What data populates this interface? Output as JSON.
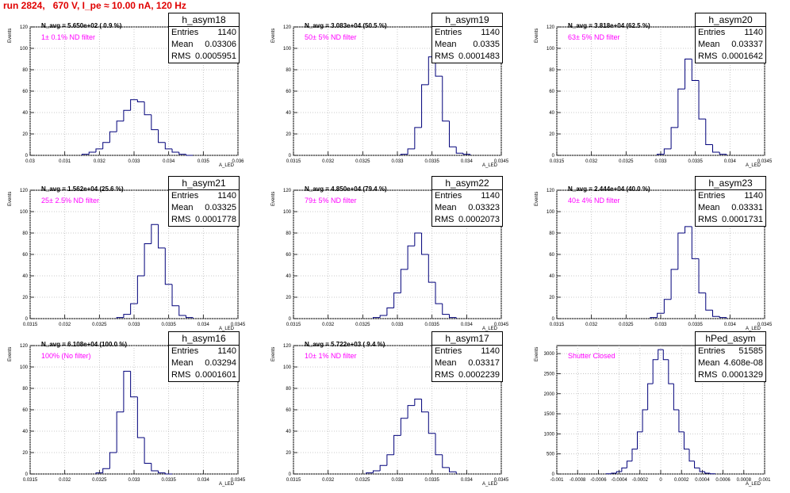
{
  "header": {
    "run_title": "run 2824,   670 V, I_pe ≈ 10.00 nA, 120 Hz"
  },
  "colors": {
    "title": "#e00000",
    "histogram": "#00007a",
    "filter_label": "#ff00ff",
    "grid": "#bbbbbb"
  },
  "stat_labels": {
    "entries": "Entries",
    "mean": "Mean",
    "rms": "RMS"
  },
  "chart_data": [
    {
      "type": "histogram",
      "name": "h_asym18",
      "n_avg": "N_avg = 5.650e+02 ( 0.9 %)",
      "filter": "1± 0.1% ND filter",
      "entries": "1140",
      "mean": "0.03306",
      "rms": "0.0005951",
      "ylabel": "Events",
      "xlabel": "A_LED",
      "xlim": [
        0.03,
        0.036
      ],
      "ylim": [
        0,
        120
      ],
      "yticks": [
        0,
        20,
        40,
        60,
        80,
        100,
        120
      ],
      "xtick_labels": [
        "0.03",
        "0.031",
        "0.032",
        "0.033",
        "0.034",
        "0.035",
        "0.036"
      ],
      "bins_x": [
        0.0316,
        0.0318,
        0.032,
        0.0322,
        0.0324,
        0.0326,
        0.0328,
        0.033,
        0.0332,
        0.0334,
        0.0336,
        0.0338,
        0.034,
        0.0342,
        0.0344,
        0.0346
      ],
      "bins_y": [
        1,
        3,
        6,
        12,
        22,
        32,
        42,
        52,
        50,
        38,
        24,
        12,
        6,
        3,
        1,
        0
      ]
    },
    {
      "type": "histogram",
      "name": "h_asym19",
      "n_avg": "N_avg = 3.083e+04 (50.5 %)",
      "filter": "50± 5% ND filter",
      "entries": "1140",
      "mean": "0.0335",
      "rms": "0.0001483",
      "ylabel": "Events",
      "xlabel": "A_LED",
      "xlim": [
        0.0315,
        0.0345
      ],
      "ylim": [
        0,
        120
      ],
      "yticks": [
        0,
        20,
        40,
        60,
        80,
        100,
        120
      ],
      "xtick_labels": [
        "0.0315",
        "0.032",
        "0.0325",
        "0.033",
        "0.0335",
        "0.034",
        "0.0345"
      ],
      "bins_x": [
        0.0331,
        0.0332,
        0.0333,
        0.0334,
        0.0335,
        0.0336,
        0.0337,
        0.0338,
        0.0339,
        0.034
      ],
      "bins_y": [
        1,
        6,
        26,
        66,
        92,
        74,
        32,
        8,
        2,
        1
      ]
    },
    {
      "type": "histogram",
      "name": "h_asym20",
      "n_avg": "N_avg = 3.818e+04 (62.5 %)",
      "filter": "63± 5% ND filter",
      "entries": "1140",
      "mean": "0.03337",
      "rms": "0.0001642",
      "ylabel": "Events",
      "xlabel": "A_LED",
      "xlim": [
        0.0315,
        0.0345
      ],
      "ylim": [
        0,
        120
      ],
      "yticks": [
        0,
        20,
        40,
        60,
        80,
        100,
        120
      ],
      "xtick_labels": [
        "0.0315",
        "0.032",
        "0.0325",
        "0.033",
        "0.0335",
        "0.034",
        "0.0345"
      ],
      "bins_x": [
        0.033,
        0.0331,
        0.0332,
        0.0333,
        0.0334,
        0.0335,
        0.0336,
        0.0337,
        0.0338,
        0.0339
      ],
      "bins_y": [
        1,
        6,
        26,
        62,
        90,
        70,
        34,
        10,
        3,
        1
      ]
    },
    {
      "type": "histogram",
      "name": "h_asym21",
      "n_avg": "N_avg = 1.562e+04 (25.6 %)",
      "filter": "25± 2.5% ND filter",
      "entries": "1140",
      "mean": "0.03325",
      "rms": "0.0001778",
      "ylabel": "Events",
      "xlabel": "A_LED",
      "xlim": [
        0.0315,
        0.0345
      ],
      "ylim": [
        0,
        120
      ],
      "yticks": [
        0,
        20,
        40,
        60,
        80,
        100,
        120
      ],
      "xtick_labels": [
        "0.0315",
        "0.032",
        "0.0325",
        "0.033",
        "0.0335",
        "0.034",
        "0.0345"
      ],
      "bins_x": [
        0.0328,
        0.0329,
        0.033,
        0.0331,
        0.0332,
        0.0333,
        0.0334,
        0.0335,
        0.0336,
        0.0337,
        0.0338
      ],
      "bins_y": [
        1,
        4,
        14,
        40,
        70,
        88,
        66,
        32,
        12,
        3,
        1
      ]
    },
    {
      "type": "histogram",
      "name": "h_asym22",
      "n_avg": "N_avg = 4.850e+04 (79.4 %)",
      "filter": "79± 5% ND filter",
      "entries": "1140",
      "mean": "0.03323",
      "rms": "0.0002073",
      "ylabel": "Events",
      "xlabel": "A_LED",
      "xlim": [
        0.0315,
        0.0345
      ],
      "ylim": [
        0,
        120
      ],
      "yticks": [
        0,
        20,
        40,
        60,
        80,
        100,
        120
      ],
      "xtick_labels": [
        "0.0315",
        "0.032",
        "0.0325",
        "0.033",
        "0.0335",
        "0.034",
        "0.0345"
      ],
      "bins_x": [
        0.0327,
        0.0328,
        0.0329,
        0.033,
        0.0331,
        0.0332,
        0.0333,
        0.0334,
        0.0335,
        0.0336,
        0.0337,
        0.0338
      ],
      "bins_y": [
        1,
        3,
        10,
        24,
        46,
        68,
        80,
        60,
        34,
        14,
        4,
        1
      ]
    },
    {
      "type": "histogram",
      "name": "h_asym23",
      "n_avg": "N_avg = 2.444e+04 (40.0 %)",
      "filter": "40± 4% ND filter",
      "entries": "1140",
      "mean": "0.03331",
      "rms": "0.0001731",
      "ylabel": "Events",
      "xlabel": "A_LED",
      "xlim": [
        0.0315,
        0.0345
      ],
      "ylim": [
        0,
        120
      ],
      "yticks": [
        0,
        20,
        40,
        60,
        80,
        100,
        120
      ],
      "xtick_labels": [
        "0.0315",
        "0.032",
        "0.0325",
        "0.033",
        "0.0335",
        "0.034",
        "0.0345"
      ],
      "bins_x": [
        0.0329,
        0.033,
        0.0331,
        0.0332,
        0.0333,
        0.0334,
        0.0335,
        0.0336,
        0.0337,
        0.0338,
        0.0339
      ],
      "bins_y": [
        1,
        5,
        18,
        46,
        80,
        86,
        56,
        24,
        8,
        2,
        1
      ]
    },
    {
      "type": "histogram",
      "name": "h_asym16",
      "n_avg": "N_avg = 6.108e+04 (100.0 %)",
      "filter": "100% (No filter)",
      "entries": "1140",
      "mean": "0.03294",
      "rms": "0.0001601",
      "ylabel": "Events",
      "xlabel": "A_LED",
      "xlim": [
        0.0315,
        0.0345
      ],
      "ylim": [
        0,
        120
      ],
      "yticks": [
        0,
        20,
        40,
        60,
        80,
        100,
        120
      ],
      "xtick_labels": [
        "0.0315",
        "0.032",
        "0.0325",
        "0.033",
        "0.0335",
        "0.034",
        "0.0345"
      ],
      "bins_x": [
        0.0325,
        0.0326,
        0.0327,
        0.0328,
        0.0329,
        0.033,
        0.0331,
        0.0332,
        0.0333,
        0.0334,
        0.0335
      ],
      "bins_y": [
        1,
        5,
        20,
        58,
        96,
        72,
        34,
        10,
        3,
        1,
        0
      ]
    },
    {
      "type": "histogram",
      "name": "h_asym17",
      "n_avg": "N_avg = 5.722e+03 ( 9.4 %)",
      "filter": "10± 1% ND filter",
      "entries": "1140",
      "mean": "0.03317",
      "rms": "0.0002239",
      "ylabel": "Events",
      "xlabel": "A_LED",
      "xlim": [
        0.0315,
        0.0345
      ],
      "ylim": [
        0,
        120
      ],
      "yticks": [
        0,
        20,
        40,
        60,
        80,
        100,
        120
      ],
      "xtick_labels": [
        "0.0315",
        "0.032",
        "0.0325",
        "0.033",
        "0.0335",
        "0.034",
        "0.0345"
      ],
      "bins_x": [
        0.0326,
        0.0327,
        0.0328,
        0.0329,
        0.033,
        0.0331,
        0.0332,
        0.0333,
        0.0334,
        0.0335,
        0.0336,
        0.0337,
        0.0338
      ],
      "bins_y": [
        1,
        3,
        8,
        18,
        36,
        52,
        64,
        70,
        58,
        38,
        18,
        6,
        2
      ]
    },
    {
      "type": "histogram",
      "name": "hPed_asym",
      "n_avg": "",
      "filter": "Shutter Closed",
      "entries": "51585",
      "mean": "4.608e-08",
      "rms": "0.0001329",
      "ylabel": "Events",
      "xlabel": "A_LED",
      "xlim": [
        -0.001,
        0.001
      ],
      "ylim": [
        0,
        3200
      ],
      "yticks": [
        0,
        500,
        1000,
        1500,
        2000,
        2500,
        3000
      ],
      "xtick_labels": [
        "-0.001",
        "-0.0008",
        "-0.0006",
        "-0.0004",
        "-0.0002",
        "0",
        "0.0002",
        "0.0004",
        "0.0006",
        "0.0008",
        "0.001"
      ],
      "bins_x": [
        -0.0005,
        -0.00045,
        -0.0004,
        -0.00035,
        -0.0003,
        -0.00025,
        -0.0002,
        -0.00015,
        -0.0001,
        -5e-05,
        0.0,
        5e-05,
        0.0001,
        0.00015,
        0.0002,
        0.00025,
        0.0003,
        0.00035,
        0.0004,
        0.00045,
        0.0005
      ],
      "bins_y": [
        5,
        20,
        60,
        150,
        320,
        620,
        1050,
        1600,
        2250,
        2850,
        3100,
        2850,
        2250,
        1600,
        1050,
        620,
        320,
        150,
        60,
        20,
        5
      ]
    }
  ]
}
